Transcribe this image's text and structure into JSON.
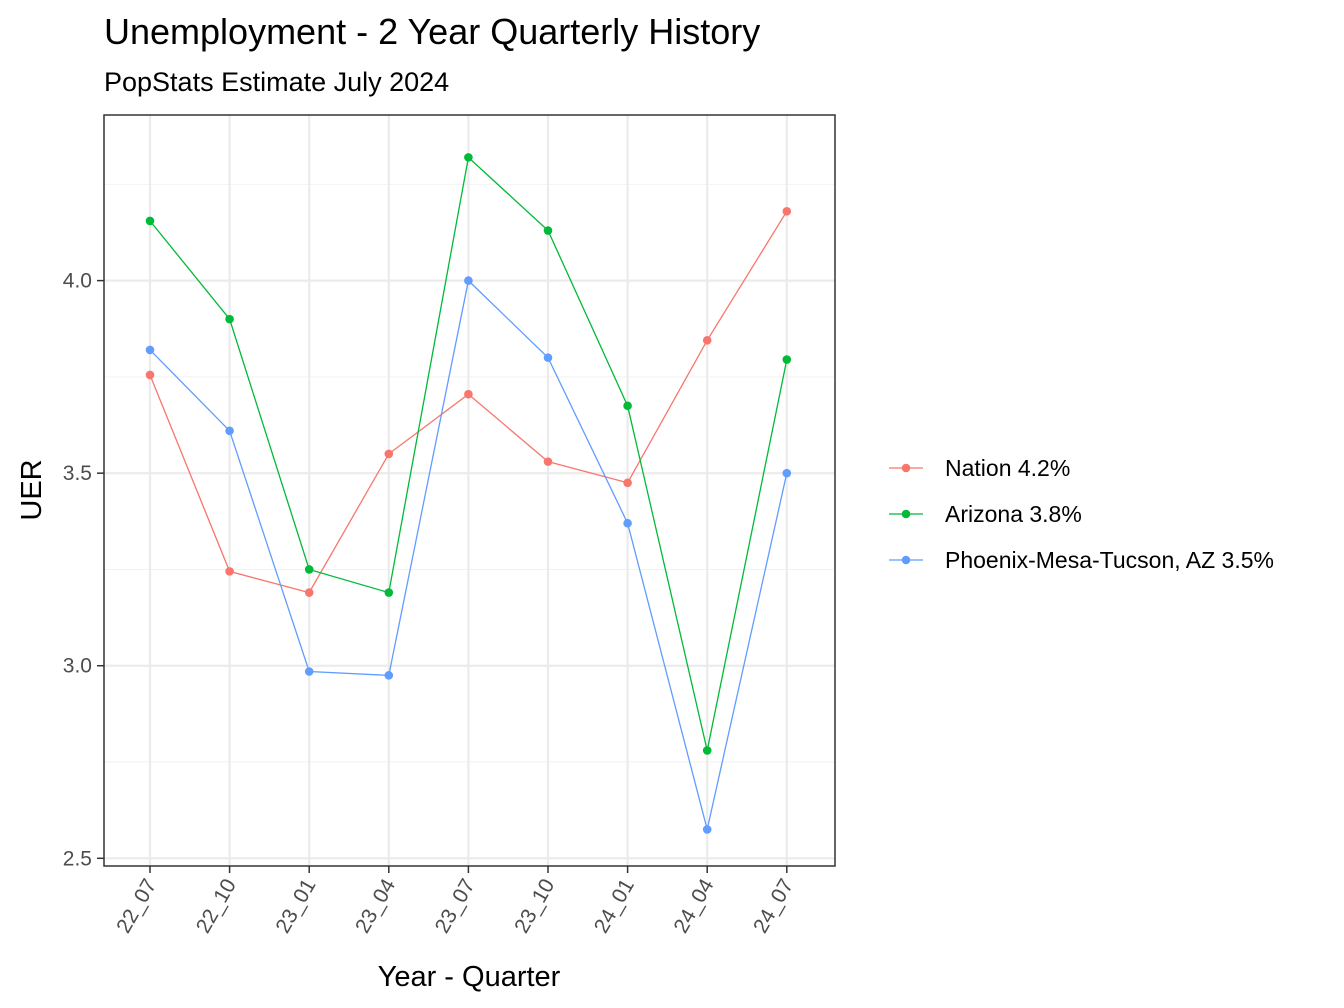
{
  "chart_data": {
    "type": "line",
    "title": "Unemployment - 2 Year Quarterly History",
    "subtitle": "PopStats Estimate July 2024",
    "xlabel": "Year - Quarter",
    "ylabel": "UER",
    "categories": [
      "22_07",
      "22_10",
      "23_01",
      "23_04",
      "23_07",
      "23_10",
      "24_01",
      "24_04",
      "24_07"
    ],
    "ylim": [
      2.48,
      4.43
    ],
    "yticks": [
      2.5,
      3.0,
      3.5,
      4.0
    ],
    "ytick_labels": [
      "2.5",
      "3.0",
      "3.5",
      "4.0"
    ],
    "grid": true,
    "legend_position": "right",
    "series": [
      {
        "name": "Nation 4.2%",
        "color": "#F8766D",
        "values": [
          3.755,
          3.245,
          3.19,
          3.55,
          3.705,
          3.53,
          3.475,
          3.845,
          4.18
        ]
      },
      {
        "name": "Arizona 3.8%",
        "color": "#00BA38",
        "values": [
          4.155,
          3.9,
          3.25,
          3.19,
          4.32,
          4.13,
          3.675,
          2.78,
          3.795
        ]
      },
      {
        "name": "Phoenix-Mesa-Tucson, AZ 3.5%",
        "color": "#619CFF",
        "values": [
          3.82,
          3.61,
          2.985,
          2.975,
          4.0,
          3.8,
          3.37,
          2.575,
          3.5
        ]
      }
    ]
  }
}
